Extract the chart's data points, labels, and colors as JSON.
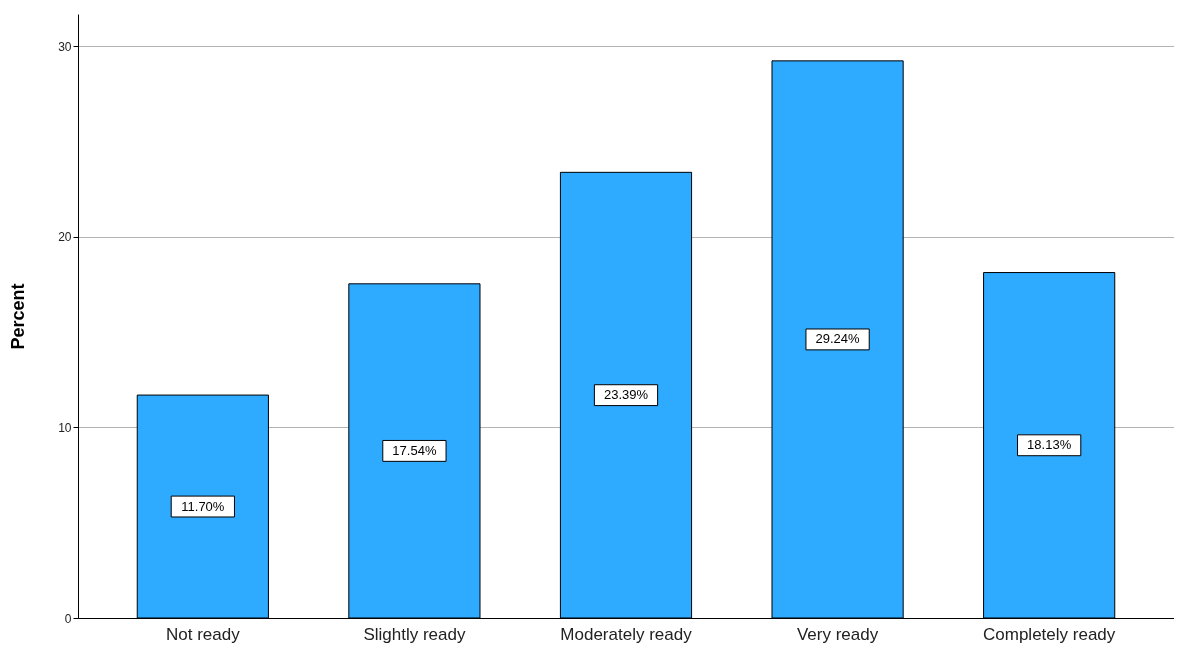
{
  "chart_data": {
    "type": "bar",
    "ylabel": "Percent",
    "categories": [
      "Not ready",
      "Slightly ready",
      "Moderately ready",
      "Very ready",
      "Completely ready"
    ],
    "values": [
      11.7,
      17.54,
      23.39,
      29.24,
      18.13
    ],
    "value_labels": [
      "11.70%",
      "17.54%",
      "23.39%",
      "29.24%",
      "18.13%"
    ],
    "color": "#2eaaff",
    "ylim": [
      0,
      31.7
    ],
    "yticks": [
      0,
      10,
      20,
      30
    ],
    "grid": "y"
  }
}
